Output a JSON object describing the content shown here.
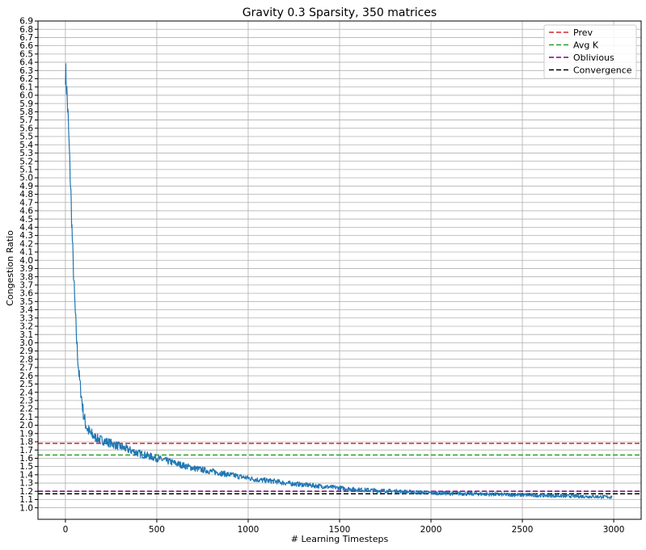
{
  "chart_data": {
    "type": "line",
    "title": "Gravity 0.3 Sparsity, 350 matrices",
    "xlabel": "# Learning Timesteps",
    "ylabel": "Congestion Ratio",
    "xlim": [
      -150,
      3150
    ],
    "ylim": [
      0.86,
      6.9
    ],
    "x_ticks": [
      0,
      500,
      1000,
      1500,
      2000,
      2500,
      3000
    ],
    "x_tick_labels": [
      "0",
      "500",
      "1000",
      "1500",
      "2000",
      "2500",
      "3000"
    ],
    "y_ticks": [
      1.0,
      1.1,
      1.2,
      1.3,
      1.4,
      1.5,
      1.6,
      1.7,
      1.8,
      1.9,
      2.0,
      2.1,
      2.2,
      2.3,
      2.4,
      2.5,
      2.6,
      2.7,
      2.8,
      2.9,
      3.0,
      3.1,
      3.2,
      3.3,
      3.4,
      3.5,
      3.6,
      3.7,
      3.8,
      3.9,
      4.0,
      4.1,
      4.2,
      4.3,
      4.4,
      4.5,
      4.6,
      4.7,
      4.8,
      4.9,
      5.0,
      5.1,
      5.2,
      5.3,
      5.4,
      5.5,
      5.6,
      5.7,
      5.8,
      5.9,
      6.0,
      6.1,
      6.2,
      6.3,
      6.4,
      6.5,
      6.6,
      6.7,
      6.8,
      6.9
    ],
    "y_tick_labels": [
      "1.0",
      "1.1",
      "1.2",
      "1.3",
      "1.4",
      "1.5",
      "1.6",
      "1.7",
      "1.8",
      "1.9",
      "2.0",
      "2.1",
      "2.2",
      "2.3",
      "2.4",
      "2.5",
      "2.6",
      "2.7",
      "2.8",
      "2.9",
      "3.0",
      "3.1",
      "3.2",
      "3.3",
      "3.4",
      "3.5",
      "3.6",
      "3.7",
      "3.8",
      "3.9",
      "4.0",
      "4.1",
      "4.2",
      "4.3",
      "4.4",
      "4.5",
      "4.6",
      "4.7",
      "4.8",
      "4.9",
      "5.0",
      "5.1",
      "5.2",
      "5.3",
      "5.4",
      "5.5",
      "5.6",
      "5.7",
      "5.8",
      "5.9",
      "6.0",
      "6.1",
      "6.2",
      "6.3",
      "6.4",
      "6.5",
      "6.6",
      "6.7",
      "6.8",
      "6.9"
    ],
    "grid": true,
    "legend_position": "top-right",
    "series": [
      {
        "color": "#1f77b4",
        "style": "solid",
        "noisy": true,
        "x": [
          0,
          5,
          10,
          15,
          20,
          25,
          30,
          35,
          40,
          45,
          50,
          55,
          60,
          65,
          70,
          75,
          80,
          85,
          90,
          95,
          100,
          110,
          120,
          130,
          140,
          150,
          175,
          200,
          225,
          250,
          300,
          350,
          400,
          450,
          500,
          550,
          600,
          650,
          700,
          750,
          800,
          850,
          900,
          950,
          1000,
          1050,
          1100,
          1150,
          1200,
          1250,
          1300,
          1350,
          1400,
          1450,
          1500,
          1550,
          1600,
          1650,
          1700,
          1750,
          1800,
          1850,
          1900,
          1950,
          2000,
          2100,
          2200,
          2300,
          2400,
          2500,
          2600,
          2700,
          2800,
          2900,
          2990
        ],
        "y": [
          6.3,
          6.15,
          5.95,
          5.7,
          5.4,
          5.1,
          4.8,
          4.45,
          4.1,
          3.8,
          3.55,
          3.3,
          3.1,
          2.9,
          2.75,
          2.6,
          2.5,
          2.4,
          2.3,
          2.2,
          2.12,
          2.02,
          1.96,
          1.92,
          1.89,
          1.87,
          1.84,
          1.82,
          1.8,
          1.78,
          1.74,
          1.7,
          1.66,
          1.63,
          1.6,
          1.57,
          1.54,
          1.51,
          1.48,
          1.46,
          1.44,
          1.42,
          1.4,
          1.38,
          1.36,
          1.34,
          1.33,
          1.32,
          1.3,
          1.29,
          1.28,
          1.27,
          1.26,
          1.25,
          1.24,
          1.23,
          1.22,
          1.215,
          1.21,
          1.205,
          1.2,
          1.195,
          1.19,
          1.185,
          1.18,
          1.175,
          1.17,
          1.165,
          1.16,
          1.155,
          1.15,
          1.145,
          1.14,
          1.135,
          1.13
        ]
      }
    ],
    "reference_lines": [
      {
        "name": "Prev",
        "y": 1.78,
        "color": "#d62728",
        "style": "dashed"
      },
      {
        "name": "Avg K",
        "y": 1.64,
        "color": "#2ca02c",
        "style": "dashed"
      },
      {
        "name": "Oblivious",
        "y": 1.2,
        "color": "#800080",
        "style": "dashed"
      },
      {
        "name": "Convergence",
        "y": 1.17,
        "color": "#000000",
        "style": "dashed"
      }
    ]
  }
}
